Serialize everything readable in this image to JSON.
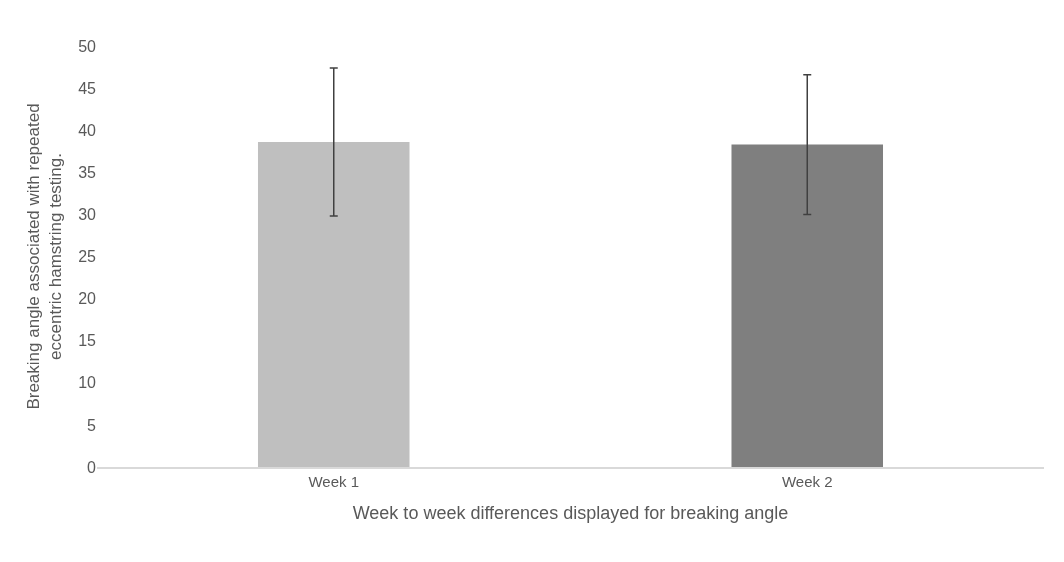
{
  "chart_data": {
    "type": "bar",
    "xlabel": "Week to week differences displayed for breaking angle",
    "ylabel": "Breaking angle associated with repeated\neccentric hamstring testing.",
    "categories": [
      "Week 1",
      "Week 2"
    ],
    "values": [
      38.6,
      38.3
    ],
    "colors": [
      "#bfbfbf",
      "#7f7f7f"
    ],
    "errors": [
      8.8,
      8.3
    ],
    "ylim": [
      0,
      50
    ],
    "yticks": [
      0,
      5,
      10,
      15,
      20,
      25,
      30,
      35,
      40,
      45,
      50
    ],
    "grid": false,
    "legend": false
  }
}
